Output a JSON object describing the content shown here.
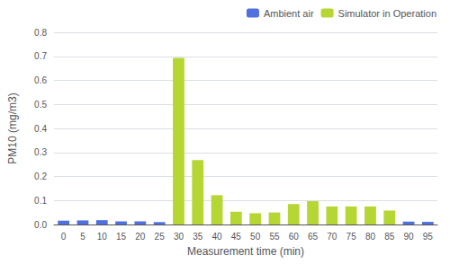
{
  "chart_data": {
    "type": "bar",
    "xlabel": "Measurement time (min)",
    "ylabel": "PM10 (mg/m3)",
    "categories": [
      0,
      5,
      10,
      15,
      20,
      25,
      30,
      35,
      40,
      45,
      50,
      55,
      60,
      65,
      70,
      75,
      80,
      85,
      90,
      95
    ],
    "series": [
      {
        "name": "Ambient air",
        "values": [
          0.016,
          0.017,
          0.018,
          0.013,
          0.013,
          0.01,
          0.0,
          0.0,
          0.0,
          0.0,
          0.0,
          0.0,
          0.0,
          0.0,
          0.0,
          0.0,
          0.0,
          0.0,
          0.012,
          0.011
        ]
      },
      {
        "name": "Simulator in Operation",
        "values": [
          0.0,
          0.0,
          0.0,
          0.0,
          0.0,
          0.0,
          0.693,
          0.268,
          0.122,
          0.053,
          0.047,
          0.05,
          0.085,
          0.097,
          0.075,
          0.075,
          0.075,
          0.058,
          0.0,
          0.0
        ]
      }
    ],
    "ylim": [
      0,
      0.8
    ],
    "yticks": [
      {
        "value": 0,
        "label": "0.0"
      },
      0.1,
      0.2,
      0.3,
      0.4,
      0.5,
      0.6,
      0.7,
      0.8
    ],
    "grid": true,
    "legend": "upper right"
  }
}
